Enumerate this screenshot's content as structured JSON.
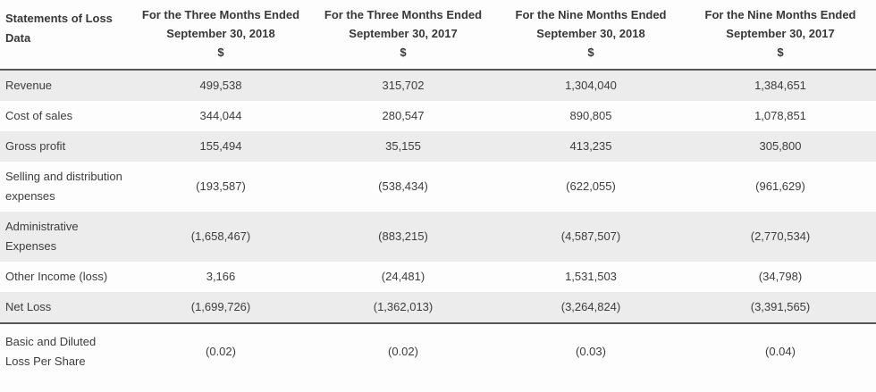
{
  "colors": {
    "row_stripe": "#ececec",
    "dark_border": "#58585a",
    "text": "#3d3d3d",
    "header_text": "#383838"
  },
  "table": {
    "title": "Statements of Loss Data",
    "header": {
      "columns": [
        {
          "line1": "For the Three Months Ended",
          "line2": "September 30, 2018",
          "line3": "$"
        },
        {
          "line1": "For the Three Months Ended",
          "line2": "September 30, 2017",
          "line3": "$"
        },
        {
          "line1": "For the Nine Months Ended",
          "line2": "September 30, 2018",
          "line3": "$"
        },
        {
          "line1": "For the Nine Months Ended",
          "line2": "September 30, 2017",
          "line3": "$"
        }
      ]
    },
    "rows": [
      {
        "label": "Revenue",
        "values": [
          "499,538",
          "315,702",
          "1,304,040",
          "1,384,651"
        ]
      },
      {
        "label": "Cost of sales",
        "values": [
          "344,044",
          "280,547",
          "890,805",
          "1,078,851"
        ]
      },
      {
        "label": "Gross profit",
        "values": [
          "155,494",
          "35,155",
          "413,235",
          "305,800"
        ]
      },
      {
        "label": "Selling and distribution expenses",
        "values": [
          "(193,587)",
          "(538,434)",
          "(622,055)",
          "(961,629)"
        ]
      },
      {
        "label": "Administrative Expenses",
        "values": [
          "(1,658,467)",
          "(883,215)",
          "(4,587,507)",
          "(2,770,534)"
        ]
      },
      {
        "label": "Other Income (loss)",
        "values": [
          "3,166",
          "(24,481)",
          "1,531,503",
          "(34,798)"
        ]
      },
      {
        "label": "Net Loss",
        "values": [
          "(1,699,726)",
          "(1,362,013)",
          "(3,264,824)",
          "(3,391,565)"
        ]
      },
      {
        "label": "Basic and Diluted Loss Per Share",
        "values": [
          "(0.02)",
          "(0.02)",
          "(0.03)",
          "(0.04)"
        ]
      }
    ]
  }
}
